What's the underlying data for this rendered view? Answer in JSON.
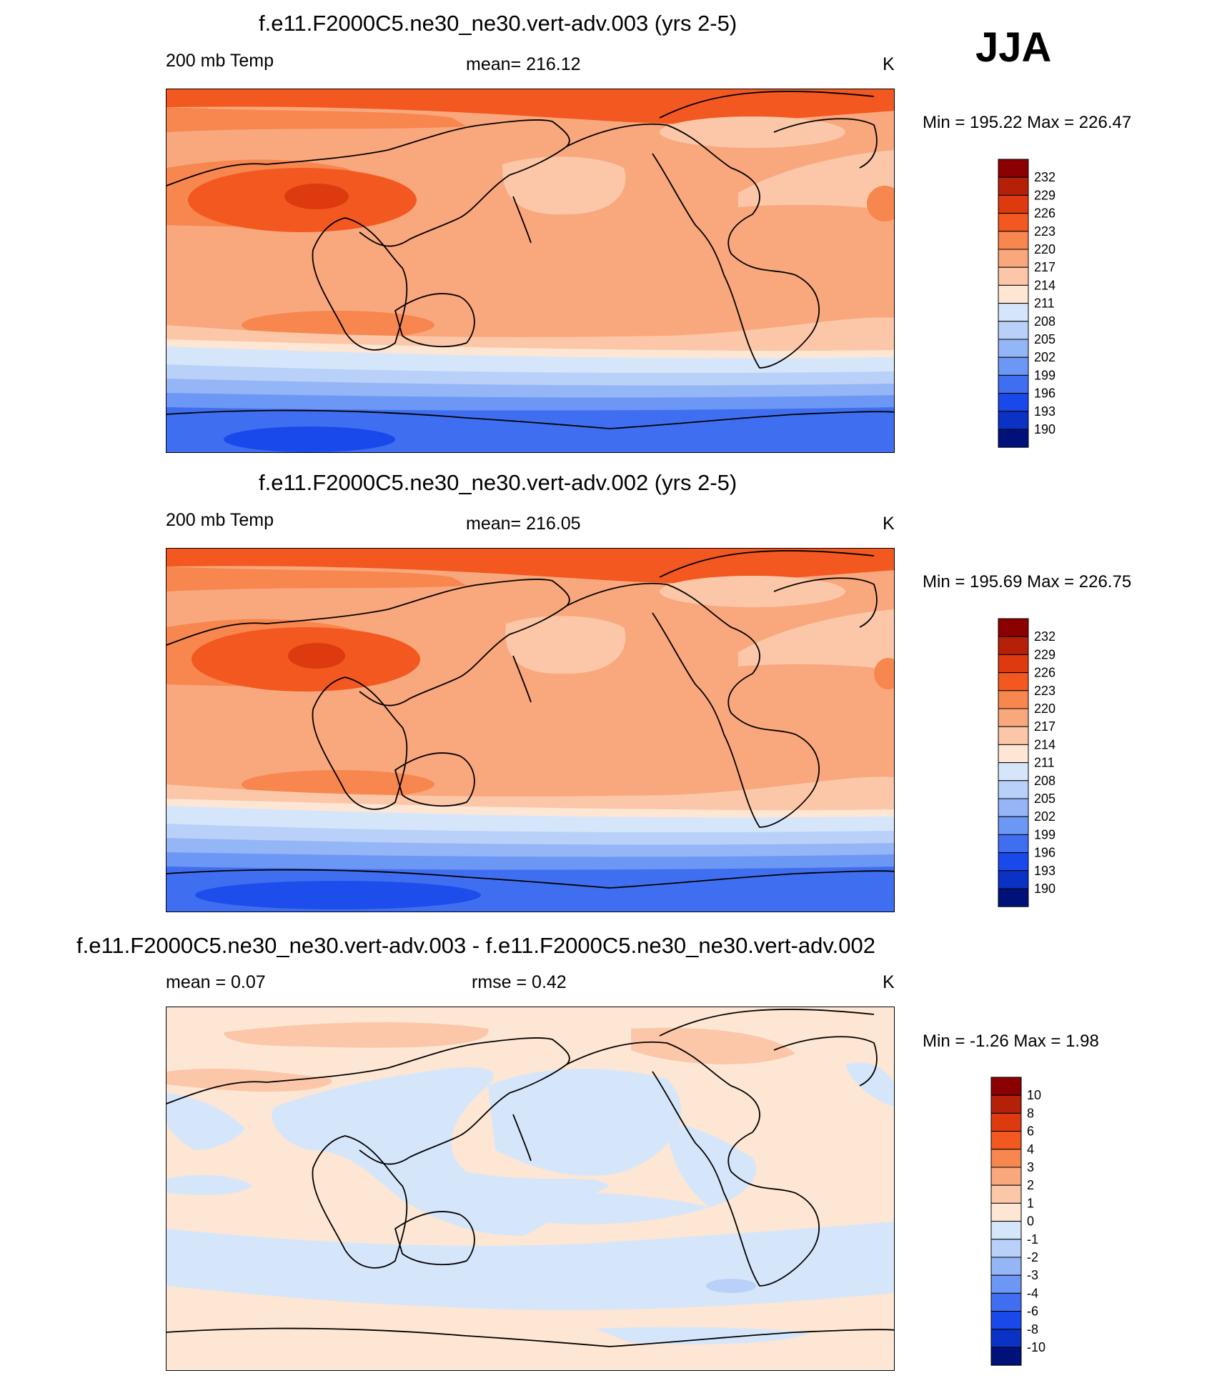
{
  "season_label": "JJA",
  "panels": [
    {
      "title": "f.e11.F2000C5.ne30_ne30.vert-adv.003 (yrs 2-5)",
      "left_label": "200 mb Temp",
      "center_label": "mean= 216.12",
      "units": "K",
      "minmax": "Min = 195.22 Max = 226.47"
    },
    {
      "title": "f.e11.F2000C5.ne30_ne30.vert-adv.002 (yrs 2-5)",
      "left_label": "200 mb Temp",
      "center_label": "mean= 216.05",
      "units": "K",
      "minmax": "Min = 195.69 Max = 226.75"
    },
    {
      "title": "f.e11.F2000C5.ne30_ne30.vert-adv.003 - f.e11.F2000C5.ne30_ne30.vert-adv.002",
      "left_label": "mean =   0.07",
      "center_label": "rmse =   0.42",
      "units": "K",
      "minmax": "Min =  -1.26 Max =   1.98"
    }
  ],
  "colorbars": {
    "temperature": {
      "labels": [
        "232",
        "229",
        "226",
        "223",
        "220",
        "217",
        "214",
        "211",
        "208",
        "205",
        "202",
        "199",
        "196",
        "193",
        "190"
      ],
      "colors": [
        "#8b0000",
        "#b52009",
        "#dd3a0f",
        "#f2581f",
        "#f7864f",
        "#f9a77d",
        "#fbc7a8",
        "#fde6d4",
        "#d6e6fa",
        "#b9d1f9",
        "#94b6f7",
        "#6d97f4",
        "#3f6ff0",
        "#1949ea",
        "#0a32c4",
        "#00127a"
      ]
    },
    "difference": {
      "labels": [
        "10",
        "8",
        "6",
        "4",
        "3",
        "2",
        "1",
        "0",
        "-1",
        "-2",
        "-3",
        "-4",
        "-6",
        "-8",
        "-10"
      ],
      "colors": [
        "#8b0000",
        "#b52009",
        "#dd3a0f",
        "#f2581f",
        "#f7864f",
        "#f9a77d",
        "#fbc7a8",
        "#fde6d4",
        "#d6e6fa",
        "#b9d1f9",
        "#94b6f7",
        "#6d97f4",
        "#3f6ff0",
        "#1949ea",
        "#0a32c4",
        "#00127a"
      ]
    }
  }
}
